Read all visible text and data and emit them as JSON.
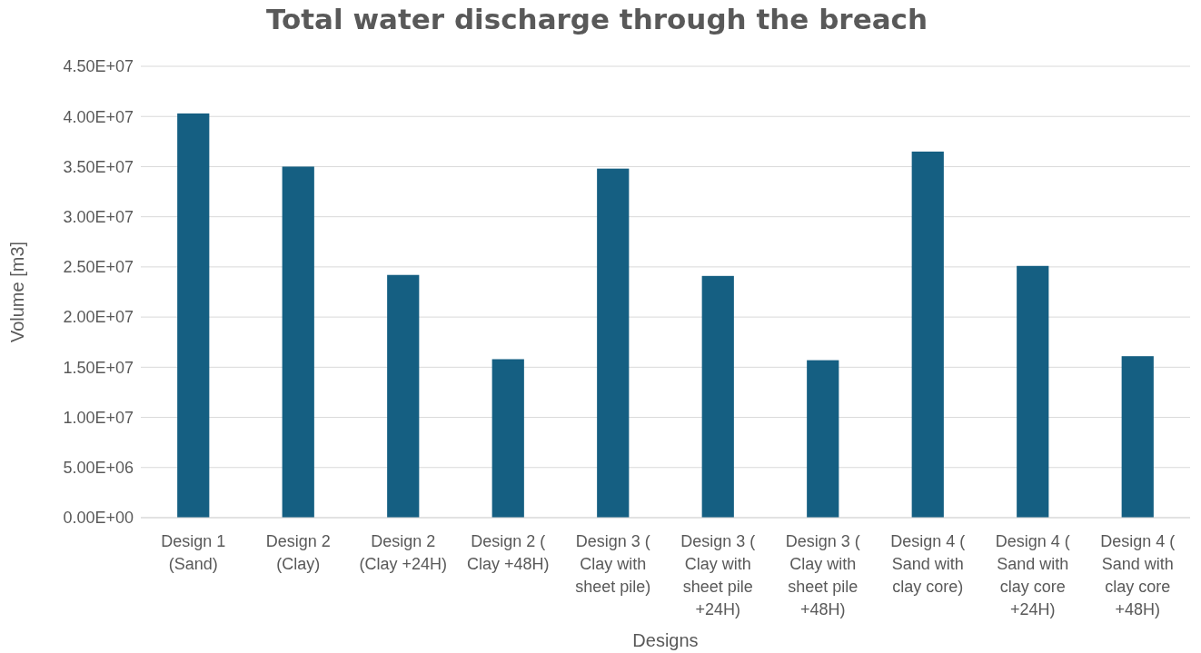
{
  "chart_data": {
    "type": "bar",
    "title": "Total water discharge through the breach",
    "xlabel": "Designs",
    "ylabel": "Volume [m3]",
    "categories": [
      "Design 1 (Sand)",
      "Design 2 (Clay)",
      "Design 2 (Clay +24H)",
      "Design 2 ( Clay +48H)",
      "Design 3 ( Clay with sheet pile)",
      "Design 3 ( Clay with sheet pile +24H)",
      "Design 3 ( Clay with sheet pile +48H)",
      "Design 4 ( Sand with clay core)",
      "Design 4 ( Sand with clay core +24H)",
      "Design 4 ( Sand with clay core +48H)"
    ],
    "values": [
      40300000,
      35000000,
      24200000,
      15800000,
      34800000,
      24100000,
      15700000,
      36500000,
      25100000,
      16100000
    ],
    "color": "#155f82",
    "ylim": [
      0,
      45000000
    ],
    "yticks": [
      {
        "value": 0,
        "label": "0.00E+00"
      },
      {
        "value": 5000000,
        "label": "5.00E+06"
      },
      {
        "value": 10000000,
        "label": "1.00E+07"
      },
      {
        "value": 15000000,
        "label": "1.50E+07"
      },
      {
        "value": 20000000,
        "label": "2.00E+07"
      },
      {
        "value": 25000000,
        "label": "2.50E+07"
      },
      {
        "value": 30000000,
        "label": "3.00E+07"
      },
      {
        "value": 35000000,
        "label": "3.50E+07"
      },
      {
        "value": 40000000,
        "label": "4.00E+07"
      },
      {
        "value": 45000000,
        "label": "4.50E+07"
      }
    ],
    "grid": "y"
  }
}
